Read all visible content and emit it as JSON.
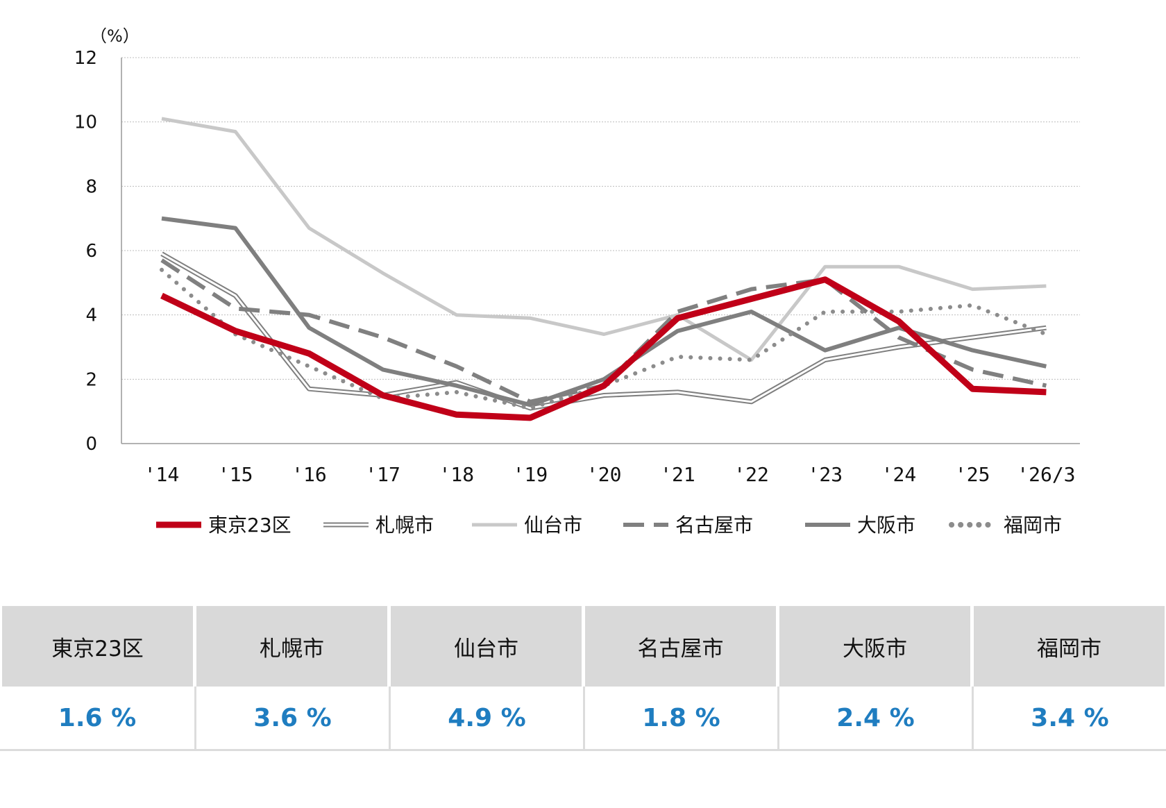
{
  "chart_data": {
    "type": "line",
    "unit_label": "（%）",
    "ylim": [
      0,
      12
    ],
    "yticks": [
      0,
      2,
      4,
      6,
      8,
      10,
      12
    ],
    "grid": true,
    "legend_position": "bottom",
    "categories": [
      "'14",
      "'15",
      "'16",
      "'17",
      "'18",
      "'19",
      "'20",
      "'21",
      "'22",
      "'23",
      "'24",
      "'25",
      "'26/3"
    ],
    "series": [
      {
        "name": "札幌市",
        "style": "double",
        "color": "#7f7f7f",
        "values": [
          5.9,
          4.6,
          1.7,
          1.5,
          1.9,
          1.1,
          1.5,
          1.6,
          1.3,
          2.6,
          3.0,
          3.3,
          3.6
        ]
      },
      {
        "name": "仙台市",
        "style": "solid",
        "color": "#c8c8c8",
        "values": [
          10.1,
          9.7,
          6.7,
          5.3,
          4.0,
          3.9,
          3.4,
          4.0,
          2.6,
          5.5,
          5.5,
          4.8,
          4.9
        ]
      },
      {
        "name": "大阪市",
        "style": "solid",
        "color": "#7f7f7f",
        "values": [
          7.0,
          6.7,
          3.6,
          2.3,
          1.8,
          1.2,
          2.0,
          3.5,
          4.1,
          2.9,
          3.6,
          2.9,
          2.4
        ]
      },
      {
        "name": "名古屋市",
        "style": "dashed",
        "color": "#808080",
        "values": [
          5.7,
          4.2,
          4.0,
          3.3,
          2.4,
          1.3,
          1.8,
          4.1,
          4.8,
          5.1,
          3.3,
          2.3,
          1.8
        ]
      },
      {
        "name": "福岡市",
        "style": "dotted",
        "color": "#8c8c8c",
        "values": [
          5.4,
          3.4,
          2.4,
          1.4,
          1.6,
          1.1,
          1.8,
          2.7,
          2.6,
          4.1,
          4.1,
          4.3,
          3.4
        ]
      },
      {
        "name": "東京23区",
        "style": "solid",
        "color": "#c00018",
        "values": [
          4.6,
          3.5,
          2.8,
          1.5,
          0.9,
          0.8,
          1.8,
          3.9,
          4.5,
          5.1,
          3.8,
          1.7,
          1.6
        ]
      }
    ],
    "legend": [
      {
        "name": "東京23区",
        "style": "solid",
        "color": "#c00018"
      },
      {
        "name": "札幌市",
        "style": "double",
        "color": "#7f7f7f"
      },
      {
        "name": "仙台市",
        "style": "solid",
        "color": "#c8c8c8"
      },
      {
        "name": "名古屋市",
        "style": "dashed",
        "color": "#808080"
      },
      {
        "name": "大阪市",
        "style": "solid",
        "color": "#7f7f7f"
      },
      {
        "name": "福岡市",
        "style": "dotted",
        "color": "#8c8c8c"
      }
    ]
  },
  "summary": {
    "headers": [
      "東京23区",
      "札幌市",
      "仙台市",
      "名古屋市",
      "大阪市",
      "福岡市"
    ],
    "values": [
      "1.6 %",
      "3.6 %",
      "4.9 %",
      "1.8 %",
      "2.4 %",
      "3.4 %"
    ],
    "value_color": "#1f7dc0"
  }
}
